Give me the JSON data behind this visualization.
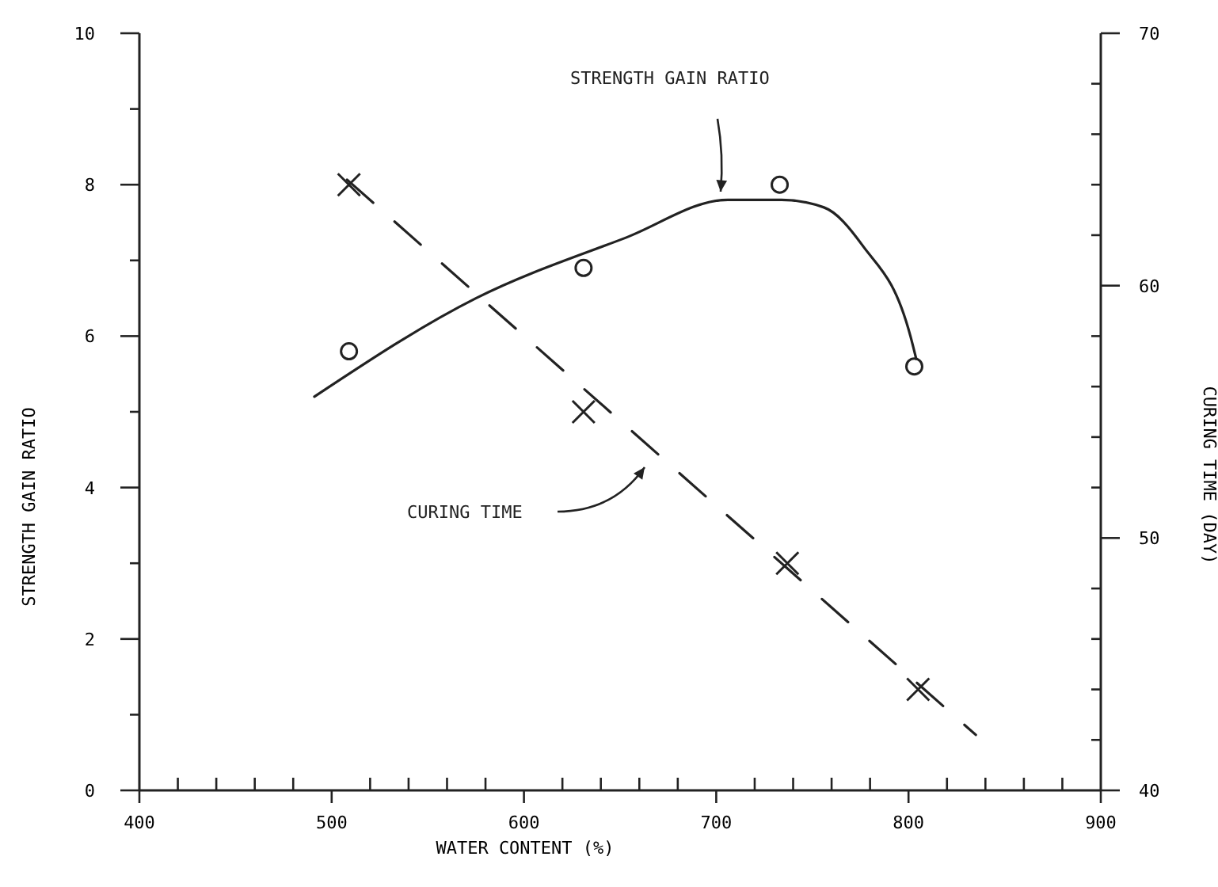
{
  "chart_data": {
    "type": "scatter",
    "xlabel": "WATER CONTENT (%)",
    "ylabel": "STRENGTH GAIN RATIO",
    "y2label": "CURING TIME (DAY)",
    "xlim": [
      400,
      900
    ],
    "xticks": [
      400,
      {
        "value": 420,
        "label": null
      },
      {
        "value": 440,
        "label": null
      },
      {
        "value": 460,
        "label": null
      },
      {
        "value": 480,
        "label": null
      },
      500,
      {
        "value": 520,
        "label": null
      },
      {
        "value": 540,
        "label": null
      },
      {
        "value": 560,
        "label": null
      },
      {
        "value": 580,
        "label": null
      },
      600,
      {
        "value": 620,
        "label": null
      },
      {
        "value": 640,
        "label": null
      },
      {
        "value": 660,
        "label": null
      },
      {
        "value": 680,
        "label": null
      },
      700,
      {
        "value": 720,
        "label": null
      },
      {
        "value": 740,
        "label": null
      },
      {
        "value": 760,
        "label": null
      },
      {
        "value": 780,
        "label": null
      },
      800,
      {
        "value": 820,
        "label": null
      },
      {
        "value": 840,
        "label": null
      },
      {
        "value": 860,
        "label": null
      },
      {
        "value": 880,
        "label": null
      },
      900
    ],
    "ylim": [
      0,
      10
    ],
    "yticks": [
      0,
      {
        "value": 1,
        "label": null
      },
      2,
      {
        "value": 3,
        "label": null
      },
      4,
      {
        "value": 5,
        "label": null
      },
      6,
      {
        "value": 7,
        "label": null
      },
      8,
      {
        "value": 9,
        "label": null
      },
      10
    ],
    "y2lim": [
      40,
      70
    ],
    "y2ticks": [
      40,
      {
        "value": 42,
        "label": null
      },
      {
        "value": 44,
        "label": null
      },
      {
        "value": 46,
        "label": null
      },
      {
        "value": 48,
        "label": null
      },
      50,
      {
        "value": 52,
        "label": null
      },
      {
        "value": 54,
        "label": null
      },
      {
        "value": 56,
        "label": null
      },
      {
        "value": 58,
        "label": null
      },
      60,
      {
        "value": 62,
        "label": null
      },
      {
        "value": 64,
        "label": null
      },
      {
        "value": 66,
        "label": null
      },
      {
        "value": 68,
        "label": null
      },
      70
    ],
    "grid": false,
    "annotations": [
      "STRENGTH GAIN RATIO",
      "CURING TIME"
    ],
    "series": [
      {
        "marker": "circle",
        "color": "#222222",
        "x": [
          509,
          631,
          733,
          803
        ],
        "values": [
          5.8,
          6.9,
          8.0,
          5.6
        ]
      },
      {
        "type": "line",
        "marker": "none",
        "line_style": "solid",
        "color": "#222222",
        "x": [
          491,
          575,
          653,
          706,
          734,
          756,
          776,
          801,
          804
        ],
        "values": [
          5.2,
          6.5,
          7.3,
          7.8,
          7.8,
          7.7,
          7.2,
          6.0,
          5.7
        ]
      },
      {
        "marker": "cross",
        "axis": "y2",
        "color": "#222222",
        "x": [
          509,
          631,
          737,
          805
        ],
        "values": [
          64,
          55,
          49,
          44
        ]
      },
      {
        "type": "line",
        "marker": "none",
        "line_style": "dashed",
        "axis": "y2",
        "color": "#222222",
        "x": [
          508,
          835
        ],
        "values": [
          64.2,
          42.2
        ]
      }
    ]
  }
}
